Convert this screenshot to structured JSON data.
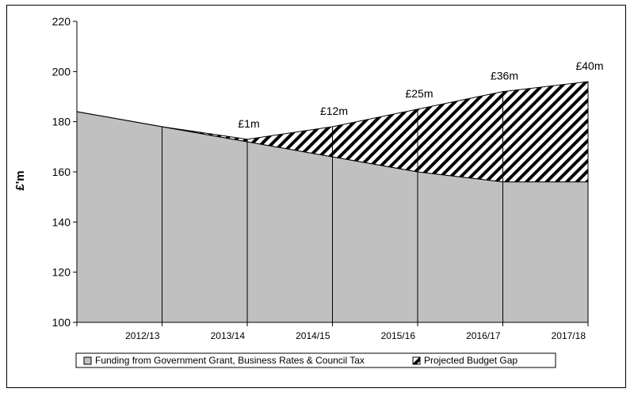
{
  "chart_data": {
    "type": "area",
    "title": "",
    "xlabel": "",
    "ylabel": "£'m",
    "ylim": [
      100,
      220
    ],
    "yticks": [
      100,
      120,
      140,
      160,
      180,
      200,
      220
    ],
    "x": [
      "",
      "2012/13",
      "2013/14",
      "2014/15",
      "2015/16",
      "2016/17",
      "2017/18"
    ],
    "grid": false,
    "legend_position": "bottom",
    "series": [
      {
        "name": "Funding from Government Grant, Business Rates & Council Tax",
        "values": [
          184,
          178,
          172,
          166,
          160,
          156,
          156
        ],
        "color": "#c0c0c0",
        "fill": "solid"
      },
      {
        "name": "Projected Budget Gap",
        "values": [
          0,
          0,
          1,
          12,
          25,
          36,
          40
        ],
        "color": "#000000",
        "fill": "diagonal-hatch"
      }
    ],
    "annotations": [
      {
        "x": "2013/14",
        "text": "£1m"
      },
      {
        "x": "2014/15",
        "text": "£12m"
      },
      {
        "x": "2015/16",
        "text": "£25m"
      },
      {
        "x": "2016/17",
        "text": "£36m"
      },
      {
        "x": "2017/18",
        "text": "£40m"
      }
    ]
  }
}
